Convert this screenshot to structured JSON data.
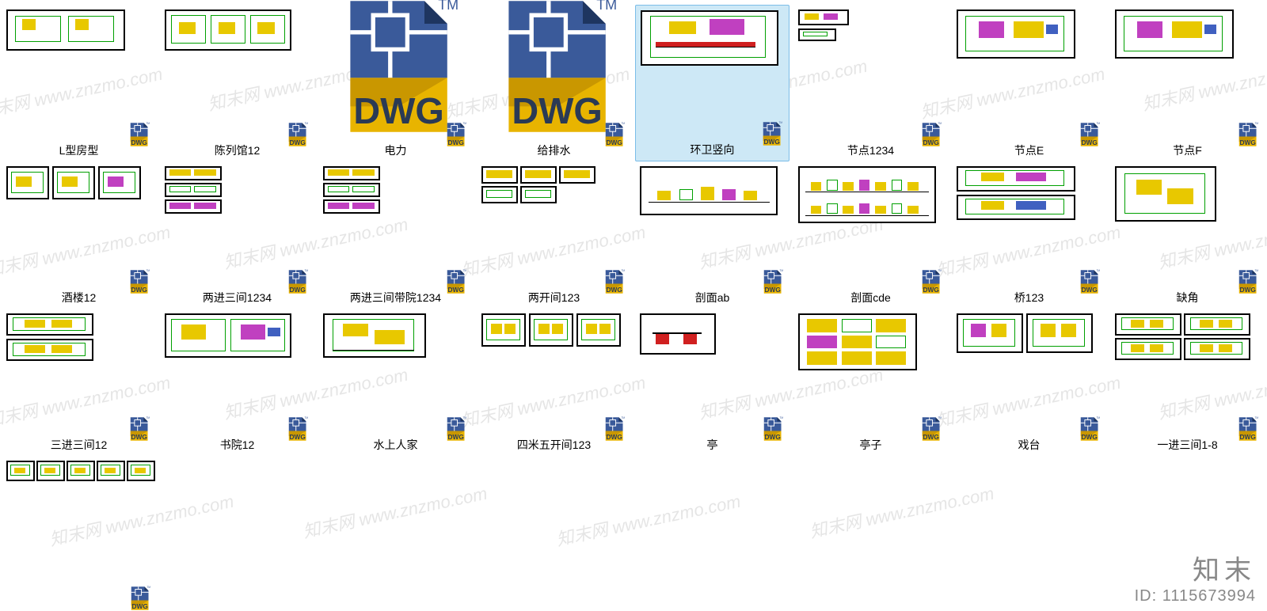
{
  "watermark_text": "知末网 www.znzmo.com",
  "footer_brand": "知末",
  "footer_id_label": "ID:",
  "footer_id_value": "1115673994",
  "dwg_label_text": "DWG",
  "dwg_tm": "TM",
  "dwg_colors": {
    "page_blue": "#3a5a9a",
    "fold_dark": "#1e3560",
    "yellow": "#e8b400",
    "dark_line": "#2a3a55",
    "text": "#2a3a55"
  },
  "selection_color": "#cde8f6",
  "files": {
    "row1": [
      {
        "name": "L型房型",
        "type": "thumb",
        "variant": "plan"
      },
      {
        "name": "陈列馆12",
        "type": "thumb",
        "variant": "plan2"
      },
      {
        "name": "电力",
        "type": "big_dwg"
      },
      {
        "name": "给排水",
        "type": "big_dwg"
      },
      {
        "name": "环卫竖向",
        "type": "thumb",
        "variant": "siteplan",
        "selected": true
      },
      {
        "name": "节点1234",
        "type": "thumb",
        "variant": "details_small"
      },
      {
        "name": "节点E",
        "type": "thumb",
        "variant": "plan_color"
      },
      {
        "name": "节点F",
        "type": "thumb",
        "variant": "plan_color"
      }
    ],
    "row2": [
      {
        "name": "酒楼12",
        "type": "thumb",
        "variant": "triple"
      },
      {
        "name": "两进三间1234",
        "type": "thumb",
        "variant": "grid_small"
      },
      {
        "name": "两进三间带院1234",
        "type": "thumb",
        "variant": "grid_small"
      },
      {
        "name": "两开间123",
        "type": "thumb",
        "variant": "grid_small2"
      },
      {
        "name": "剖面ab",
        "type": "thumb",
        "variant": "section1"
      },
      {
        "name": "剖面cde",
        "type": "thumb",
        "variant": "section2"
      },
      {
        "name": "桥123",
        "type": "thumb",
        "variant": "double_plan"
      },
      {
        "name": "缺角",
        "type": "thumb",
        "variant": "plan_box"
      }
    ],
    "row3": [
      {
        "name": "三进三间12",
        "type": "thumb",
        "variant": "stacked2"
      },
      {
        "name": "书院12",
        "type": "thumb",
        "variant": "plan_color2"
      },
      {
        "name": "水上人家",
        "type": "thumb",
        "variant": "house"
      },
      {
        "name": "四米五开间123",
        "type": "thumb",
        "variant": "triple2"
      },
      {
        "name": "亭",
        "type": "thumb",
        "variant": "pavilion"
      },
      {
        "name": "亭子",
        "type": "thumb",
        "variant": "grid9"
      },
      {
        "name": "戏台",
        "type": "thumb",
        "variant": "double_plan2"
      },
      {
        "name": "一进三间1-8",
        "type": "thumb",
        "variant": "quad_plan"
      }
    ],
    "row4": [
      {
        "name": "",
        "type": "thumb",
        "variant": "strip5",
        "no_badge": true
      },
      {
        "name": "",
        "type": "empty"
      },
      {
        "name": "",
        "type": "empty"
      },
      {
        "name": "",
        "type": "empty"
      },
      {
        "name": "",
        "type": "empty"
      },
      {
        "name": "",
        "type": "empty"
      },
      {
        "name": "",
        "type": "empty"
      },
      {
        "name": "",
        "type": "empty"
      }
    ],
    "bottom_badge": true
  },
  "thumb_colors": {
    "border": "#000000",
    "green": "#00a000",
    "yellow": "#e8c800",
    "magenta": "#c040c0",
    "blue": "#4060c0",
    "red": "#d02020"
  }
}
